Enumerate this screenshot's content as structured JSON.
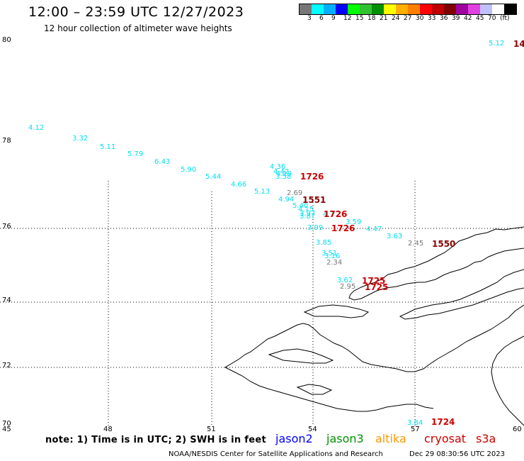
{
  "header": {
    "title": "12:00 – 23:59 UTC 12/27/2023",
    "subtitle": "12 hour collection of altimeter wave heights"
  },
  "colorbar": {
    "colors": [
      "#777777",
      "#00ffff",
      "#00b0ff",
      "#0000ff",
      "#00ff00",
      "#30c030",
      "#009000",
      "#ffff00",
      "#ffb000",
      "#ff8000",
      "#ff0000",
      "#c00000",
      "#800000",
      "#a000a0",
      "#e040e0",
      "#c0c0ff",
      "#ffffff",
      "#000000"
    ],
    "labels": [
      "3",
      "6",
      "9",
      "12",
      "15",
      "18",
      "21",
      "24",
      "27",
      "30",
      "33",
      "36",
      "39",
      "42",
      "45",
      "70",
      "(ft)"
    ]
  },
  "axes": {
    "lat_labels": [
      "80",
      "78",
      "76",
      "74",
      "72",
      "70"
    ],
    "lon_labels": [
      "45",
      "48",
      "51",
      "54",
      "57",
      "60"
    ]
  },
  "wave_heights": [
    {
      "value": "4.12",
      "color": "#00e0f0"
    },
    {
      "value": "3.32",
      "color": "#00e0f0"
    },
    {
      "value": "5.11",
      "color": "#00e0f0"
    },
    {
      "value": "5.79",
      "color": "#00e0f0"
    },
    {
      "value": "6.43",
      "color": "#00e0f0"
    },
    {
      "value": "5.90",
      "color": "#00e0f0"
    },
    {
      "value": "5.44",
      "color": "#00e0f0"
    },
    {
      "value": "4.66",
      "color": "#00e0f0"
    },
    {
      "value": "5.13",
      "color": "#00e0f0"
    },
    {
      "value": "4.36",
      "color": "#00e0f0"
    },
    {
      "value": "4.42",
      "color": "#00e0f0"
    },
    {
      "value": "4.19",
      "color": "#00e0f0"
    },
    {
      "value": "3.58",
      "color": "#00e0f0"
    },
    {
      "value": "2.69",
      "color": "#777777"
    },
    {
      "value": "4.94",
      "color": "#00e0f0"
    },
    {
      "value": "5.40",
      "color": "#00e0f0"
    },
    {
      "value": "4.15",
      "color": "#00e0f0"
    },
    {
      "value": "3.97",
      "color": "#00e0f0"
    },
    {
      "value": "3.87",
      "color": "#00e0f0"
    },
    {
      "value": "4.7",
      "color": "#00e0f0"
    },
    {
      "value": "3.59",
      "color": "#00e0f0"
    },
    {
      "value": "3.99",
      "color": "#00e0f0"
    },
    {
      "value": "4.47",
      "color": "#00e0f0"
    },
    {
      "value": "3.63",
      "color": "#00e0f0"
    },
    {
      "value": "2.45",
      "color": "#777777"
    },
    {
      "value": "3.85",
      "color": "#00e0f0"
    },
    {
      "value": "3.51",
      "color": "#00e0f0"
    },
    {
      "value": "3.16",
      "color": "#00e0f0"
    },
    {
      "value": "2.34",
      "color": "#777777"
    },
    {
      "value": "3.62",
      "color": "#00e0f0"
    },
    {
      "value": "2.95",
      "color": "#777777"
    },
    {
      "value": "3.84",
      "color": "#00e0f0"
    },
    {
      "value": "5.12",
      "color": "#00e0f0"
    }
  ],
  "pass_times": [
    {
      "value": "1726",
      "color": "#cc0000"
    },
    {
      "value": "1551",
      "color": "#880000"
    },
    {
      "value": "1726",
      "color": "#cc0000"
    },
    {
      "value": "1726",
      "color": "#cc0000"
    },
    {
      "value": "1550",
      "color": "#880000"
    },
    {
      "value": "1725",
      "color": "#cc0000"
    },
    {
      "value": "1725",
      "color": "#cc0000"
    },
    {
      "value": "1724",
      "color": "#cc0000"
    },
    {
      "value": "14",
      "color": "#880000"
    }
  ],
  "legend": {
    "note": "note: 1) Time is in UTC; 2) SWH is in feet",
    "satellites": [
      {
        "name": "jason2",
        "color": "#0000ff"
      },
      {
        "name": "jason3",
        "color": "#009000"
      },
      {
        "name": "altika",
        "color": "#ff9900"
      },
      {
        "name": "cryosat",
        "color": "#cc0000"
      },
      {
        "name": "s3a",
        "color": "#cc0000"
      }
    ]
  },
  "footer": {
    "credit": "NOAA/NESDIS Center for Satellite Applications and Research",
    "timestamp": "Dec 29 08:30:56 UTC 2023"
  }
}
